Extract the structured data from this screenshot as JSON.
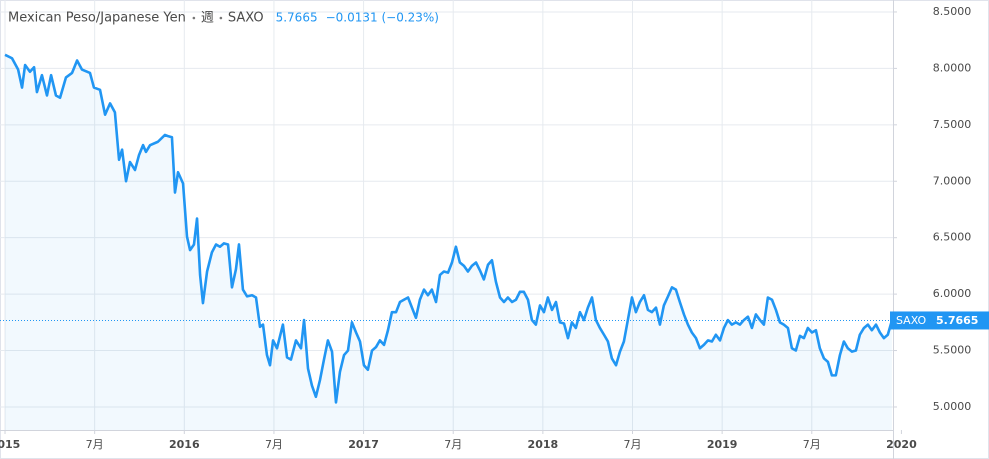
{
  "chart_data": {
    "type": "line",
    "symbol": "Mexican Peso/Japanese Yen",
    "interval": "週",
    "source": "SAXO",
    "current_price": 5.7665,
    "change": "−0.0131 (−0.23%)",
    "color": "#2196f3",
    "grid": true,
    "xlim": [
      2014.972,
      2019.953
    ],
    "ylim": [
      4.796,
      8.606
    ],
    "xticks": [
      {
        "value": 2015,
        "label": "2015"
      },
      {
        "value": 2015.5,
        "label": "7月"
      },
      {
        "value": 2016,
        "label": "2016"
      },
      {
        "value": 2016.5,
        "label": "7月"
      },
      {
        "value": 2017,
        "label": "2017"
      },
      {
        "value": 2017.5,
        "label": "7月"
      },
      {
        "value": 2018,
        "label": "2018"
      },
      {
        "value": 2018.5,
        "label": "7月"
      },
      {
        "value": 2019,
        "label": "2019"
      },
      {
        "value": 2019.5,
        "label": "7月"
      },
      {
        "value": 2020,
        "label": "2020"
      }
    ],
    "yticks": [
      {
        "value": 5,
        "label": "5.0000"
      },
      {
        "value": 5.5,
        "label": "5.5000"
      },
      {
        "value": 6,
        "label": "6.0000"
      },
      {
        "value": 6.5,
        "label": "6.5000"
      },
      {
        "value": 7,
        "label": "7.0000"
      },
      {
        "value": 7.5,
        "label": "7.5000"
      },
      {
        "value": 8,
        "label": "8.0000"
      },
      {
        "value": 8.5,
        "label": "8.5000"
      }
    ],
    "x": [
      2015.0,
      2015.039,
      2015.073,
      2015.095,
      2015.112,
      2015.139,
      2015.162,
      2015.178,
      2015.206,
      2015.234,
      2015.257,
      2015.284,
      2015.307,
      2015.34,
      2015.374,
      2015.402,
      2015.429,
      2015.474,
      2015.496,
      2015.53,
      2015.558,
      2015.586,
      2015.613,
      2015.636,
      2015.653,
      2015.675,
      2015.697,
      2015.725,
      2015.747,
      2015.77,
      2015.786,
      2015.809,
      2015.853,
      2015.892,
      2015.909,
      2015.931,
      2015.948,
      2015.965,
      2015.993,
      2016.015,
      2016.032,
      2016.054,
      2016.071,
      2016.088,
      2016.104,
      2016.127,
      2016.154,
      2016.177,
      2016.199,
      2016.221,
      2016.244,
      2016.266,
      2016.288,
      2016.305,
      2016.327,
      2016.35,
      2016.378,
      2016.4,
      2016.422,
      2016.439,
      2016.461,
      2016.478,
      2016.495,
      2016.517,
      2016.55,
      2016.573,
      2016.595,
      2016.623,
      2016.651,
      2016.668,
      2016.69,
      2016.712,
      2016.734,
      2016.757,
      2016.779,
      2016.801,
      2016.824,
      2016.846,
      2016.868,
      2016.891,
      2016.913,
      2016.935,
      2016.958,
      2016.98,
      2017.002,
      2017.024,
      2017.047,
      2017.069,
      2017.091,
      2017.114,
      2017.136,
      2017.158,
      2017.181,
      2017.203,
      2017.225,
      2017.248,
      2017.27,
      2017.292,
      2017.314,
      2017.337,
      2017.359,
      2017.381,
      2017.404,
      2017.426,
      2017.448,
      2017.471,
      2017.493,
      2017.515,
      2017.537,
      2017.56,
      2017.582,
      2017.604,
      2017.627,
      2017.649,
      2017.671,
      2017.694,
      2017.716,
      2017.738,
      2017.761,
      2017.783,
      2017.805,
      2017.828,
      2017.85,
      2017.872,
      2017.894,
      2017.917,
      2017.939,
      2017.961,
      2017.984,
      2018.006,
      2018.028,
      2018.051,
      2018.073,
      2018.095,
      2018.118,
      2018.14,
      2018.162,
      2018.184,
      2018.207,
      2018.229,
      2018.251,
      2018.274,
      2018.296,
      2018.318,
      2018.341,
      2018.363,
      2018.385,
      2018.408,
      2018.43,
      2018.452,
      2018.474,
      2018.497,
      2018.519,
      2018.541,
      2018.564,
      2018.586,
      2018.608,
      2018.631,
      2018.653,
      2018.675,
      2018.698,
      2018.72,
      2018.742,
      2018.764,
      2018.787,
      2018.809,
      2018.831,
      2018.854,
      2018.876,
      2018.898,
      2018.921,
      2018.943,
      2018.965,
      2018.988,
      2019.01,
      2019.032,
      2019.054,
      2019.077,
      2019.099,
      2019.121,
      2019.144,
      2019.166,
      2019.188,
      2019.211,
      2019.233,
      2019.255,
      2019.278,
      2019.3,
      2019.322,
      2019.344,
      2019.367,
      2019.389,
      2019.411,
      2019.434,
      2019.456,
      2019.478,
      2019.501,
      2019.523,
      2019.545,
      2019.568,
      2019.59,
      2019.612,
      2019.634,
      2019.657,
      2019.679,
      2019.701,
      2019.724,
      2019.746,
      2019.768,
      2019.791,
      2019.813,
      2019.835,
      2019.858,
      2019.88,
      2019.902,
      2019.924,
      2019.947
    ],
    "values": [
      8.12,
      8.09,
      7.99,
      7.83,
      8.03,
      7.97,
      8.01,
      7.79,
      7.94,
      7.76,
      7.94,
      7.76,
      7.74,
      7.92,
      7.96,
      8.07,
      7.99,
      7.96,
      7.83,
      7.81,
      7.59,
      7.69,
      7.61,
      7.19,
      7.28,
      7.0,
      7.17,
      7.1,
      7.23,
      7.32,
      7.26,
      7.32,
      7.35,
      7.41,
      7.4,
      7.39,
      6.9,
      7.08,
      6.98,
      6.51,
      6.39,
      6.44,
      6.67,
      6.17,
      5.92,
      6.2,
      6.37,
      6.44,
      6.42,
      6.45,
      6.44,
      6.06,
      6.22,
      6.44,
      6.04,
      5.98,
      5.99,
      5.97,
      5.71,
      5.73,
      5.46,
      5.37,
      5.59,
      5.52,
      5.73,
      5.44,
      5.42,
      5.59,
      5.52,
      5.77,
      5.34,
      5.19,
      5.09,
      5.24,
      5.42,
      5.59,
      5.49,
      5.04,
      5.31,
      5.46,
      5.5,
      5.75,
      5.66,
      5.58,
      5.37,
      5.33,
      5.5,
      5.53,
      5.59,
      5.55,
      5.68,
      5.84,
      5.84,
      5.93,
      5.95,
      5.97,
      5.88,
      5.79,
      5.95,
      6.04,
      5.99,
      6.04,
      5.93,
      6.17,
      6.2,
      6.19,
      6.28,
      6.42,
      6.28,
      6.25,
      6.2,
      6.25,
      6.28,
      6.21,
      6.13,
      6.26,
      6.3,
      6.11,
      5.97,
      5.93,
      5.97,
      5.93,
      5.95,
      6.02,
      6.02,
      5.95,
      5.77,
      5.73,
      5.9,
      5.84,
      5.97,
      5.86,
      5.93,
      5.75,
      5.74,
      5.61,
      5.75,
      5.7,
      5.84,
      5.77,
      5.88,
      5.97,
      5.77,
      5.7,
      5.64,
      5.58,
      5.43,
      5.37,
      5.49,
      5.58,
      5.77,
      5.97,
      5.84,
      5.93,
      5.99,
      5.86,
      5.84,
      5.88,
      5.73,
      5.9,
      5.98,
      6.06,
      6.04,
      5.93,
      5.82,
      5.73,
      5.66,
      5.61,
      5.52,
      5.55,
      5.59,
      5.58,
      5.64,
      5.59,
      5.7,
      5.77,
      5.73,
      5.75,
      5.73,
      5.77,
      5.8,
      5.7,
      5.82,
      5.77,
      5.73,
      5.97,
      5.95,
      5.86,
      5.75,
      5.73,
      5.7,
      5.52,
      5.5,
      5.63,
      5.61,
      5.7,
      5.66,
      5.68,
      5.52,
      5.43,
      5.4,
      5.28,
      5.28,
      5.46,
      5.58,
      5.52,
      5.49,
      5.5,
      5.64,
      5.7,
      5.73,
      5.68,
      5.73,
      5.66,
      5.61,
      5.64,
      5.7665
    ]
  }
}
